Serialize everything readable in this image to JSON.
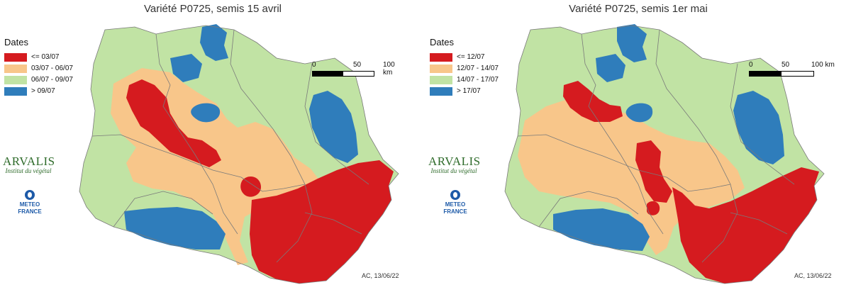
{
  "colors": {
    "red": "#d51b1f",
    "orange": "#f8c68a",
    "green": "#c1e3a4",
    "blue": "#2f7dbb",
    "boundary": "#7a7a7a"
  },
  "panels": [
    {
      "title": "Variété P0725, semis 15 avril",
      "legend_title": "Dates",
      "legend": [
        {
          "label": "<= 03/07",
          "color": "#d51b1f"
        },
        {
          "label": "03/07 - 06/07",
          "color": "#f8c68a"
        },
        {
          "label": "06/07 - 09/07",
          "color": "#c1e3a4"
        },
        {
          "label": "> 09/07",
          "color": "#2f7dbb"
        }
      ],
      "scale": {
        "start": "0",
        "mid": "50",
        "end": "100 km"
      },
      "credit": "AC, 13/06/22"
    },
    {
      "title": "Variété P0725, semis 1er mai",
      "legend_title": "Dates",
      "legend": [
        {
          "label": "<= 12/07",
          "color": "#d51b1f"
        },
        {
          "label": "12/07 - 14/07",
          "color": "#f8c68a"
        },
        {
          "label": "14/07 - 17/07",
          "color": "#c1e3a4"
        },
        {
          "label": "> 17/07",
          "color": "#2f7dbb"
        }
      ],
      "scale": {
        "start": "0",
        "mid": "50",
        "end": "100 km"
      },
      "credit": "AC, 13/06/22"
    }
  ],
  "logos": {
    "arvalis_name": "ARVALIS",
    "arvalis_sub": "Institut du végétal",
    "meteo_line1": "METEO",
    "meteo_line2": "FRANCE"
  }
}
